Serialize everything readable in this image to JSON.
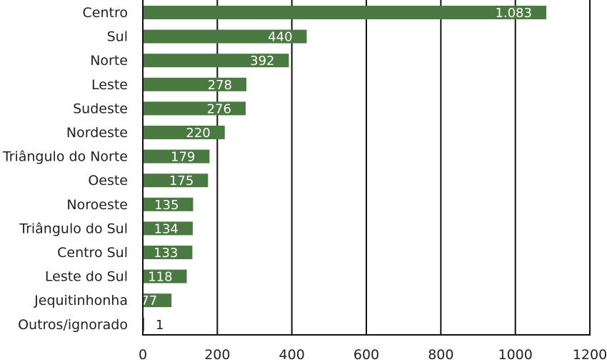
{
  "chart_data": {
    "type": "bar",
    "orientation": "horizontal",
    "categories": [
      "Centro",
      "Sul",
      "Norte",
      "Leste",
      "Sudeste",
      "Nordeste",
      "Triângulo do Norte",
      "Oeste",
      "Noroeste",
      "Triângulo do Sul",
      "Centro Sul",
      "Leste do Sul",
      "Jequitinhonha",
      "Outros/ignorado"
    ],
    "values": [
      1083,
      440,
      392,
      278,
      276,
      220,
      179,
      175,
      135,
      134,
      133,
      118,
      77,
      1
    ],
    "value_labels": [
      "1.083",
      "440",
      "392",
      "278",
      "276",
      "220",
      "179",
      "175",
      "135",
      "134",
      "133",
      "118",
      "77",
      "1"
    ],
    "xlim": [
      0,
      1200
    ],
    "xticks": [
      0,
      200,
      400,
      600,
      800,
      1000,
      1200
    ],
    "xtick_labels": [
      "0",
      "200",
      "400",
      "600",
      "800",
      "1000",
      "1200"
    ],
    "grid": "vertical",
    "legend": "none",
    "colors": {
      "bar": "#4a7a42",
      "label_inside": "#ffffff",
      "label_outside": "#231f20",
      "grid": "#111111"
    }
  }
}
